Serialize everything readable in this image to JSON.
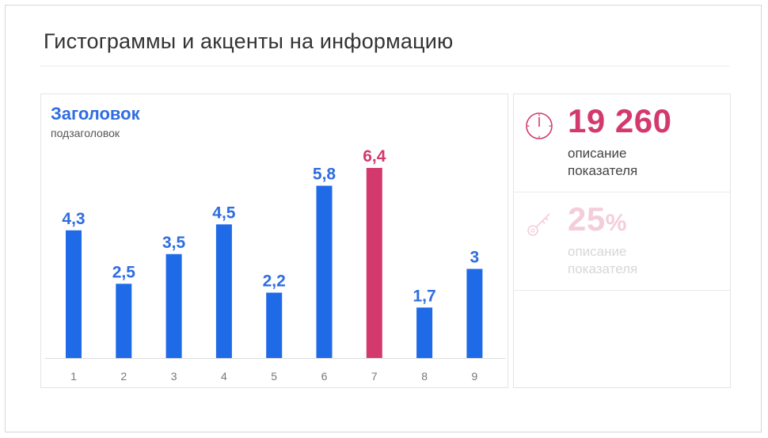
{
  "page": {
    "title": "Гистограммы и акценты на информацию"
  },
  "chart_data": {
    "type": "bar",
    "title": "Заголовок",
    "subtitle": "подзаголовок",
    "categories": [
      "1",
      "2",
      "3",
      "4",
      "5",
      "6",
      "7",
      "8",
      "9"
    ],
    "values": [
      4.3,
      2.5,
      3.5,
      4.5,
      2.2,
      5.8,
      6.4,
      1.7,
      3
    ],
    "value_labels": [
      "4,3",
      "2,5",
      "3,5",
      "4,5",
      "2,2",
      "5,8",
      "6,4",
      "1,7",
      "3"
    ],
    "highlight_index": 6,
    "ylim": [
      0,
      6.4
    ],
    "grid": false,
    "colors": {
      "bar": "#1f6ae6",
      "highlight": "#d4396e",
      "label": "#2f6de1",
      "tick": "#777777",
      "axis": "#dddddd"
    }
  },
  "kpis": [
    {
      "value": "19 260",
      "unit": "",
      "description_line1": "описание",
      "description_line2": "показателя",
      "icon": "clock-icon",
      "faded": false
    },
    {
      "value": "25",
      "unit": "%",
      "description_line1": "описание",
      "description_line2": "показателя",
      "icon": "key-icon",
      "faded": true
    }
  ],
  "colors": {
    "accent": "#d4396e",
    "accent_faded": "#f4cddb",
    "primary": "#1f6ae6"
  }
}
